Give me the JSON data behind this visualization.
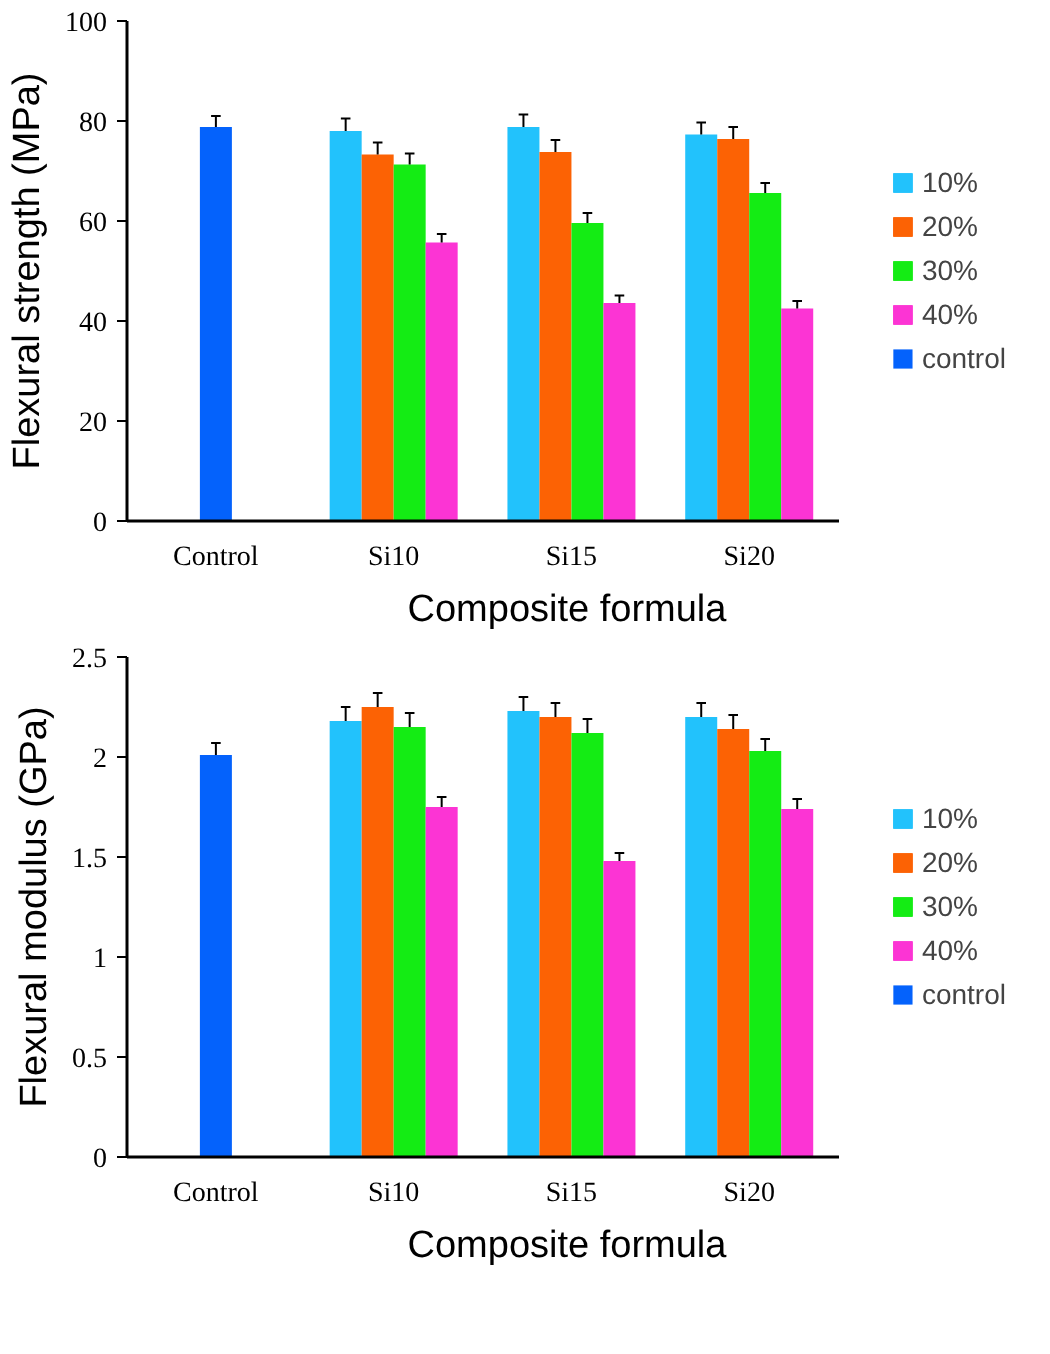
{
  "chart_data": [
    {
      "type": "bar",
      "xlabel": "Composite formula",
      "ylabel": "Flexural strength (MPa)",
      "categories": [
        "Control",
        "Si10",
        "Si15",
        "Si20"
      ],
      "series": [
        {
          "name": "10%",
          "color": "#22c2fc",
          "values": [
            null,
            78,
            78.8,
            77.3
          ],
          "errors": [
            null,
            2.5,
            2.5,
            2.4
          ]
        },
        {
          "name": "20%",
          "color": "#fc6204",
          "values": [
            null,
            73.3,
            73.8,
            76.4
          ],
          "errors": [
            null,
            2.4,
            2.4,
            2.4
          ]
        },
        {
          "name": "30%",
          "color": "#14ec14",
          "values": [
            null,
            71.3,
            59.6,
            65.6
          ],
          "errors": [
            null,
            2.2,
            2,
            2
          ]
        },
        {
          "name": "40%",
          "color": "#fc34d4",
          "values": [
            null,
            55.7,
            43.6,
            42.5
          ],
          "errors": [
            null,
            1.7,
            1.5,
            1.5
          ]
        },
        {
          "name": "control",
          "color": "#0462fc",
          "values": [
            78.8,
            null,
            null,
            null
          ],
          "errors": [
            2.2,
            null,
            null,
            null
          ]
        }
      ],
      "ylim": [
        0,
        100
      ],
      "yticks": [
        0,
        20,
        40,
        60,
        80,
        100
      ],
      "grid": false,
      "legend": "right"
    },
    {
      "type": "bar",
      "xlabel": "Composite formula",
      "ylabel": "Flexural modulus (GPa)",
      "categories": [
        "Control",
        "Si10",
        "Si15",
        "Si20"
      ],
      "series": [
        {
          "name": "10%",
          "color": "#22c2fc",
          "values": [
            null,
            2.18,
            2.23,
            2.2
          ],
          "errors": [
            null,
            0.07,
            0.07,
            0.07
          ]
        },
        {
          "name": "20%",
          "color": "#fc6204",
          "values": [
            null,
            2.25,
            2.2,
            2.14
          ],
          "errors": [
            null,
            0.07,
            0.07,
            0.07
          ]
        },
        {
          "name": "30%",
          "color": "#14ec14",
          "values": [
            null,
            2.15,
            2.12,
            2.03
          ],
          "errors": [
            null,
            0.07,
            0.07,
            0.06
          ]
        },
        {
          "name": "40%",
          "color": "#fc34d4",
          "values": [
            null,
            1.75,
            1.48,
            1.74
          ],
          "errors": [
            null,
            0.05,
            0.04,
            0.05
          ]
        },
        {
          "name": "control",
          "color": "#0462fc",
          "values": [
            2.01,
            null,
            null,
            null
          ],
          "errors": [
            0.06,
            null,
            null,
            null
          ]
        }
      ],
      "ylim": [
        0,
        2.5
      ],
      "yticks": [
        0,
        {
          "value": 0.5,
          "label": "0.5"
        },
        1,
        {
          "value": 1.5,
          "label": "1.5"
        },
        2,
        {
          "value": 2.5,
          "label": "2.5"
        }
      ],
      "grid": false,
      "legend": "right"
    }
  ]
}
